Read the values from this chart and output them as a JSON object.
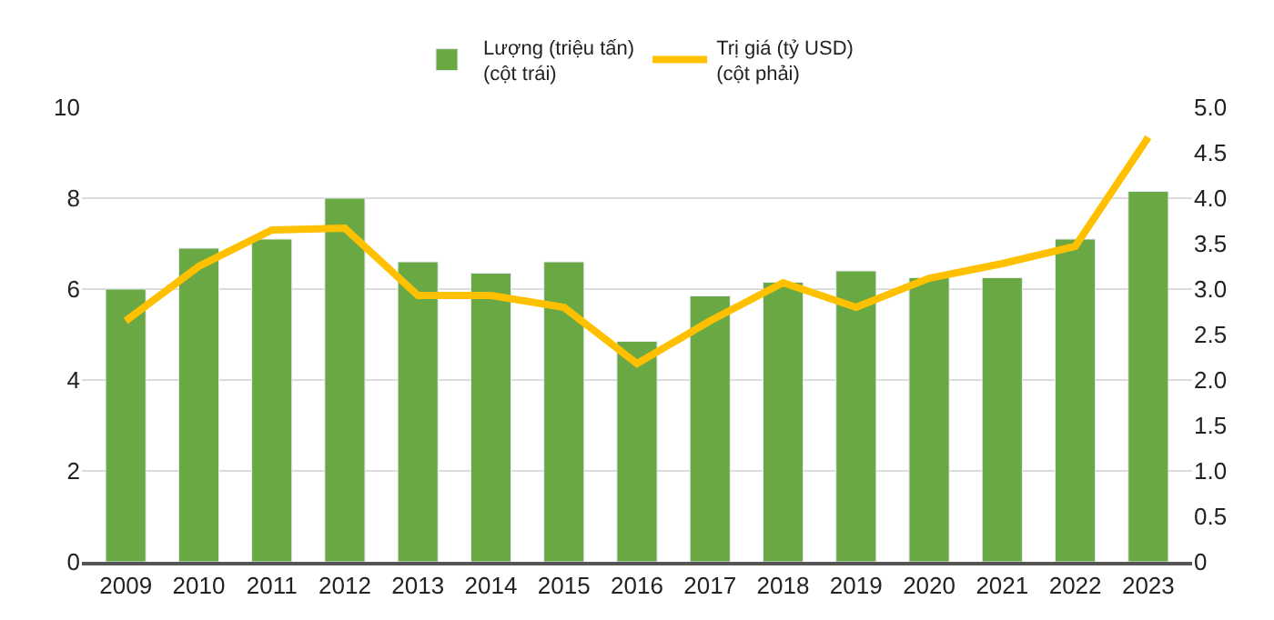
{
  "chart_data": {
    "type": "bar",
    "categories": [
      "2009",
      "2010",
      "2011",
      "2012",
      "2013",
      "2014",
      "2015",
      "2016",
      "2017",
      "2018",
      "2019",
      "2020",
      "2021",
      "2022",
      "2023"
    ],
    "series": [
      {
        "name": "Lượng (triệu tấn)\n(cột trái)",
        "color": "#6aa844",
        "values": [
          6.0,
          6.9,
          7.1,
          8.0,
          6.6,
          6.35,
          6.6,
          4.85,
          5.85,
          6.15,
          6.4,
          6.25,
          6.25,
          7.1,
          8.15
        ]
      },
      {
        "name": "Trị giá (tỷ USD)\n(cột phải)",
        "type": "line",
        "axis": "y2",
        "color": "#ffc000",
        "values": [
          2.65,
          3.25,
          3.65,
          3.67,
          2.93,
          2.93,
          2.8,
          2.18,
          2.65,
          3.07,
          2.8,
          3.12,
          3.28,
          3.47,
          4.67
        ]
      }
    ],
    "ylim": [
      0,
      10
    ],
    "yticks": [
      0,
      2,
      4,
      6,
      8,
      10
    ],
    "y2lim": [
      0,
      5
    ],
    "y2ticks": [
      0,
      {
        "value": 0.5,
        "label": "0.5"
      },
      {
        "value": 1,
        "label": "1.0"
      },
      {
        "value": 1.5,
        "label": "1.5"
      },
      {
        "value": 2,
        "label": "2.0"
      },
      {
        "value": 2.5,
        "label": "2.5"
      },
      {
        "value": 3,
        "label": "3.0"
      },
      {
        "value": 3.5,
        "label": "3.5"
      },
      {
        "value": 4,
        "label": "4.0"
      },
      {
        "value": 4.5,
        "label": "4.5"
      },
      {
        "value": 5,
        "label": "5.0"
      }
    ],
    "grid": "y",
    "legend": "top",
    "marker": "none",
    "line_style": "solid"
  }
}
